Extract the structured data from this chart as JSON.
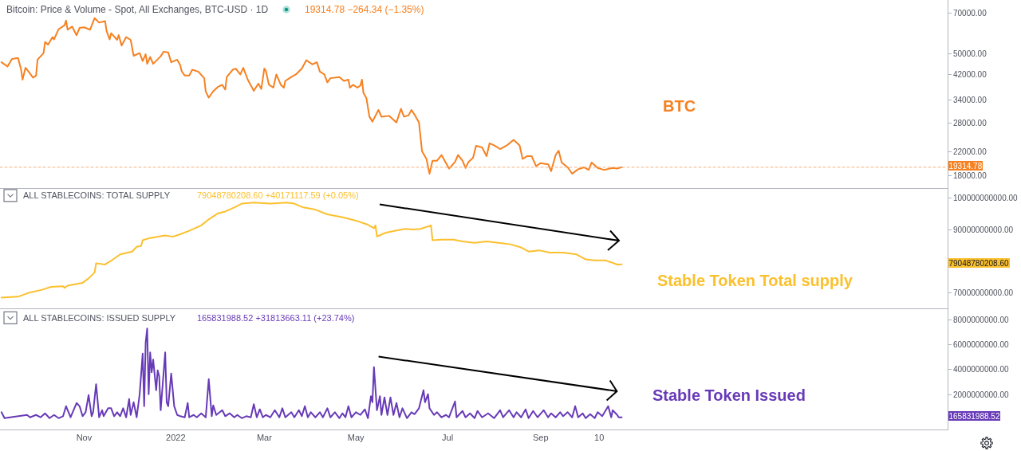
{
  "chart_data": [
    {
      "type": "line",
      "title": "Bitcoin: Price & Volume - Spot, All Exchanges, BTC-USD · 1D",
      "subtitle": "19314.78 −264.34 (−1.35%)",
      "series": [
        {
          "name": "BTC",
          "color": "#f68121",
          "x": [
            "2021-09-07",
            "2021-09-11",
            "2021-09-14",
            "2021-09-18",
            "2021-09-20",
            "2021-09-21",
            "2021-09-23",
            "2021-09-25",
            "2021-09-28",
            "2021-09-30",
            "2021-10-01",
            "2021-10-05",
            "2021-10-06",
            "2021-10-08",
            "2021-10-11",
            "2021-10-12",
            "2021-10-15",
            "2021-10-19",
            "2021-10-20",
            "2021-10-21",
            "2021-10-24",
            "2021-10-27",
            "2021-10-29",
            "2021-11-01",
            "2021-11-05",
            "2021-11-08",
            "2021-11-11",
            "2021-11-15",
            "2021-11-16",
            "2021-11-18",
            "2021-11-19",
            "2021-11-23",
            "2021-11-24",
            "2021-11-26",
            "2021-11-29",
            "2021-12-02",
            "2021-12-04",
            "2021-12-08",
            "2021-12-10",
            "2021-12-12",
            "2021-12-13",
            "2021-12-15",
            "2021-12-17",
            "2021-12-22",
            "2021-12-24",
            "2021-12-27",
            "2021-12-29",
            "2022-01-02",
            "2022-01-04",
            "2022-01-05",
            "2022-01-07",
            "2022-01-10",
            "2022-01-12",
            "2022-01-16",
            "2022-01-20",
            "2022-01-21",
            "2022-01-23",
            "2022-01-26",
            "2022-01-29",
            "2022-02-01",
            "2022-02-03",
            "2022-02-04",
            "2022-02-08",
            "2022-02-10",
            "2022-02-13",
            "2022-02-15",
            "2022-02-18",
            "2022-02-22",
            "2022-02-25",
            "2022-02-27",
            "2022-03-01",
            "2022-03-02",
            "2022-03-04",
            "2022-03-07",
            "2022-03-09",
            "2022-03-12",
            "2022-03-14",
            "2022-03-15",
            "2022-03-19",
            "2022-03-22",
            "2022-03-26",
            "2022-03-29",
            "2022-04-02",
            "2022-04-05",
            "2022-04-07",
            "2022-04-10",
            "2022-04-12",
            "2022-04-14",
            "2022-04-20",
            "2022-04-23",
            "2022-04-26",
            "2022-04-27",
            "2022-04-29",
            "2022-05-02",
            "2022-05-04",
            "2022-05-05",
            "2022-05-06",
            "2022-05-08",
            "2022-05-10",
            "2022-05-12",
            "2022-05-16",
            "2022-05-18",
            "2022-05-23",
            "2022-05-28",
            "2022-05-31",
            "2022-06-02",
            "2022-06-05",
            "2022-06-07",
            "2022-06-09",
            "2022-06-12",
            "2022-06-14",
            "2022-06-17",
            "2022-06-19",
            "2022-06-21",
            "2022-06-24",
            "2022-06-27",
            "2022-07-02",
            "2022-07-06",
            "2022-07-08",
            "2022-07-11",
            "2022-07-13",
            "2022-07-15",
            "2022-07-18",
            "2022-07-20",
            "2022-07-24",
            "2022-07-27",
            "2022-07-29",
            "2022-08-01",
            "2022-08-05",
            "2022-08-10",
            "2022-08-14",
            "2022-08-18",
            "2022-08-20",
            "2022-08-23",
            "2022-08-26",
            "2022-08-29",
            "2022-09-01",
            "2022-09-06",
            "2022-09-08",
            "2022-09-11",
            "2022-09-13",
            "2022-09-15",
            "2022-09-19",
            "2022-09-22",
            "2022-09-26",
            "2022-09-30",
            "2022-10-03",
            "2022-10-05",
            "2022-10-09",
            "2022-10-13",
            "2022-10-19",
            "2022-10-22",
            "2022-10-25"
          ],
          "values": [
            46500,
            44900,
            47800,
            48200,
            43900,
            40200,
            44400,
            43000,
            40900,
            41600,
            47500,
            50200,
            55100,
            53900,
            57400,
            56300,
            61300,
            63400,
            65900,
            61100,
            62700,
            58300,
            62000,
            62300,
            61100,
            67300,
            64800,
            65600,
            60300,
            56300,
            59300,
            56100,
            58400,
            53500,
            57400,
            56100,
            49100,
            50200,
            47000,
            49700,
            45900,
            48600,
            45900,
            48900,
            50800,
            50500,
            46500,
            47500,
            45400,
            43100,
            41600,
            41600,
            43700,
            43000,
            40700,
            36400,
            34600,
            36500,
            37800,
            38500,
            37000,
            41100,
            43700,
            44100,
            42000,
            44400,
            40200,
            36600,
            38900,
            37200,
            44100,
            43400,
            38600,
            37600,
            42000,
            38500,
            37600,
            39800,
            41100,
            42000,
            44100,
            47300,
            45700,
            46500,
            43000,
            42000,
            39300,
            40700,
            41100,
            39800,
            40200,
            37600,
            38500,
            37600,
            38300,
            40200,
            36000,
            34400,
            29500,
            28300,
            31200,
            29500,
            29700,
            28100,
            31500,
            29500,
            29800,
            31200,
            30000,
            28100,
            22100,
            20700,
            18300,
            20400,
            20400,
            21400,
            19100,
            20200,
            21400,
            20400,
            19200,
            20200,
            20900,
            23100,
            22800,
            21200,
            23600,
            23200,
            22500,
            23300,
            24300,
            23200,
            20700,
            21200,
            21200,
            19500,
            20000,
            19800,
            18700,
            21400,
            22200,
            20100,
            19300,
            18300,
            19000,
            19300,
            18900,
            20100,
            19200,
            18900,
            19200,
            19100,
            19314.78
          ]
        }
      ],
      "xlim": [
        "2021-09-06",
        "2023-05-30"
      ],
      "ylim": [
        16200,
        78300
      ],
      "log": true,
      "tick_labels": "y",
      "yticks": [
        {
          "value": 70000,
          "label": "70000.00"
        },
        {
          "value": 50000,
          "label": "50000.00"
        },
        {
          "value": 42000,
          "label": "42000.00"
        },
        {
          "value": 34000,
          "label": "34000.00"
        },
        {
          "value": 28000,
          "label": "28000.00"
        },
        {
          "value": 22000,
          "label": "22000.00"
        },
        {
          "value": 18000,
          "label": "18000.00"
        }
      ],
      "ref_lines": [
        {
          "axis": "y",
          "value": 19314.78,
          "label": "19314.78",
          "color": "#f9b07a",
          "line_style": "dotted"
        }
      ]
    },
    {
      "type": "line",
      "title": "ALL STABLECOINS: TOTAL SUPPLY",
      "subtitle": "79048780208.60 +40171117.59 (+0.05%)",
      "series": [
        {
          "name": "Stable Token Total supply",
          "color": "#fbc02d",
          "x": [
            "2021-09-07",
            "2021-09-18",
            "2021-09-25",
            "2021-10-04",
            "2021-10-10",
            "2021-10-18",
            "2021-10-19",
            "2021-10-21",
            "2021-10-31",
            "2021-11-04",
            "2021-11-08",
            "2021-11-09",
            "2021-11-15",
            "2021-11-19",
            "2021-11-25",
            "2021-12-03",
            "2021-12-06",
            "2021-12-09",
            "2021-12-10",
            "2021-12-14",
            "2021-12-25",
            "2021-12-30",
            "2022-01-04",
            "2022-01-10",
            "2022-01-18",
            "2022-01-23",
            "2022-01-29",
            "2022-02-03",
            "2022-02-09",
            "2022-02-14",
            "2022-02-22",
            "2022-03-05",
            "2022-03-16",
            "2022-03-21",
            "2022-03-27",
            "2022-04-04",
            "2022-04-12",
            "2022-04-23",
            "2022-05-01",
            "2022-05-09",
            "2022-05-13",
            "2022-05-14",
            "2022-05-15",
            "2022-05-21",
            "2022-05-28",
            "2022-06-03",
            "2022-06-08",
            "2022-06-13",
            "2022-06-20",
            "2022-06-21",
            "2022-06-27",
            "2022-07-05",
            "2022-07-11",
            "2022-07-19",
            "2022-07-27",
            "2022-08-04",
            "2022-08-12",
            "2022-08-19",
            "2022-08-24",
            "2022-08-31",
            "2022-09-07",
            "2022-09-16",
            "2022-09-25",
            "2022-10-01",
            "2022-10-07",
            "2022-10-14",
            "2022-10-18",
            "2022-10-22",
            "2022-10-25"
          ],
          "values": [
            68500000000.0,
            68800000000.0,
            70000000000.0,
            71000000000.0,
            71900000000.0,
            72100000000.0,
            71600000000.0,
            72300000000.0,
            73200000000.0,
            74600000000.0,
            76500000000.0,
            79400000000.0,
            79000000000.0,
            80200000000.0,
            82200000000.0,
            83100000000.0,
            84600000000.0,
            84900000000.0,
            86700000000.0,
            87300000000.0,
            88200000000.0,
            87800000000.0,
            88600000000.0,
            89700000000.0,
            91400000000.0,
            93300000000.0,
            95200000000.0,
            95800000000.0,
            97100000000.0,
            98300000000.0,
            98600000000.0,
            98300000000.0,
            98600000000.0,
            98300000000.0,
            97100000000.0,
            96400000000.0,
            94900000000.0,
            93900000000.0,
            92900000000.0,
            91600000000.0,
            90500000000.0,
            91400000000.0,
            87900000000.0,
            89100000000.0,
            89800000000.0,
            90300000000.0,
            90100000000.0,
            90300000000.0,
            91400000000.0,
            86700000000.0,
            86900000000.0,
            86900000000.0,
            86300000000.0,
            85900000000.0,
            86300000000.0,
            85900000000.0,
            85400000000.0,
            84400000000.0,
            83100000000.0,
            83500000000.0,
            82800000000.0,
            82800000000.0,
            82200000000.0,
            80600000000.0,
            80300000000.0,
            80300000000.0,
            79700000000.0,
            79000000000.0,
            79048780208.6
          ]
        }
      ],
      "xlim": [
        "2021-09-06",
        "2023-05-30"
      ],
      "ylim": [
        65200000000,
        103170000000
      ],
      "tick_labels": "y",
      "yticks": [
        {
          "value": 100000000000,
          "label": "100000000000.00"
        },
        {
          "value": 90000000000,
          "label": "90000000000.00"
        },
        {
          "value": 70000000000,
          "label": "70000000000.00"
        }
      ],
      "annotations": [
        "79048780208.60"
      ]
    },
    {
      "type": "line",
      "title": "ALL STABLECOINS: ISSUED SUPPLY",
      "subtitle": "165831988.52 +31813663.11 (+23.74%)",
      "series": [
        {
          "name": "Stable Token Issued",
          "color": "#673ab7",
          "x": [
            "2021-09-07",
            "2021-09-09",
            "2021-09-24",
            "2021-09-26",
            "2021-09-30",
            "2021-10-03",
            "2021-10-06",
            "2021-10-09",
            "2021-10-12",
            "2021-10-15",
            "2021-10-18",
            "2021-10-20",
            "2021-10-23",
            "2021-10-27",
            "2021-10-29",
            "2021-10-31",
            "2021-11-02",
            "2021-11-04",
            "2021-11-06",
            "2021-11-07",
            "2021-11-09",
            "2021-11-11",
            "2021-11-13",
            "2021-11-14",
            "2021-11-17",
            "2021-11-19",
            "2021-11-21",
            "2021-11-23",
            "2021-11-25",
            "2021-11-27",
            "2021-11-29",
            "2021-12-01",
            "2021-12-02",
            "2021-12-04",
            "2021-12-06",
            "2021-12-08",
            "2021-12-10",
            "2021-12-11",
            "2021-12-12",
            "2021-12-13",
            "2021-12-14",
            "2021-12-15",
            "2021-12-16",
            "2021-12-17",
            "2021-12-19",
            "2021-12-20",
            "2021-12-21",
            "2021-12-22",
            "2021-12-25",
            "2021-12-26",
            "2021-12-27",
            "2021-12-29",
            "2021-12-31",
            "2022-01-02",
            "2022-01-04",
            "2022-01-07",
            "2022-01-09",
            "2022-01-10",
            "2022-01-13",
            "2022-01-15",
            "2022-01-18",
            "2022-01-21",
            "2022-01-23",
            "2022-01-25",
            "2022-01-26",
            "2022-01-28",
            "2022-02-01",
            "2022-02-03",
            "2022-02-06",
            "2022-02-09",
            "2022-02-11",
            "2022-02-14",
            "2022-02-17",
            "2022-02-20",
            "2022-02-22",
            "2022-02-24",
            "2022-02-26",
            "2022-02-28",
            "2022-03-02",
            "2022-03-05",
            "2022-03-08",
            "2022-03-11",
            "2022-03-13",
            "2022-03-15",
            "2022-03-19",
            "2022-03-21",
            "2022-03-24",
            "2022-03-26",
            "2022-03-28",
            "2022-03-30",
            "2022-04-01",
            "2022-04-04",
            "2022-04-07",
            "2022-04-09",
            "2022-04-12",
            "2022-04-14",
            "2022-04-17",
            "2022-04-20",
            "2022-04-22",
            "2022-04-24",
            "2022-04-26",
            "2022-04-28",
            "2022-05-01",
            "2022-05-04",
            "2022-05-07",
            "2022-05-09",
            "2022-05-11",
            "2022-05-12",
            "2022-05-13",
            "2022-05-15",
            "2022-05-17",
            "2022-05-18",
            "2022-05-20",
            "2022-05-22",
            "2022-05-24",
            "2022-05-26",
            "2022-05-28",
            "2022-05-30",
            "2022-06-01",
            "2022-06-04",
            "2022-06-07",
            "2022-06-09",
            "2022-06-12",
            "2022-06-15",
            "2022-06-16",
            "2022-06-18",
            "2022-06-19",
            "2022-06-22",
            "2022-06-24",
            "2022-06-27",
            "2022-06-30",
            "2022-07-02",
            "2022-07-06",
            "2022-07-07",
            "2022-07-11",
            "2022-07-13",
            "2022-07-16",
            "2022-07-19",
            "2022-07-21",
            "2022-07-24",
            "2022-07-28",
            "2022-08-01",
            "2022-08-05",
            "2022-08-07",
            "2022-08-11",
            "2022-08-14",
            "2022-08-16",
            "2022-08-19",
            "2022-08-22",
            "2022-08-24",
            "2022-08-27",
            "2022-08-30",
            "2022-09-03",
            "2022-09-06",
            "2022-09-08",
            "2022-09-11",
            "2022-09-14",
            "2022-09-16",
            "2022-09-19",
            "2022-09-22",
            "2022-09-24",
            "2022-09-26",
            "2022-09-29",
            "2022-10-01",
            "2022-10-04",
            "2022-10-07",
            "2022-10-09",
            "2022-10-12",
            "2022-10-16",
            "2022-10-18",
            "2022-10-19",
            "2022-10-22",
            "2022-10-23",
            "2022-10-25"
          ],
          "values": [
            580000000.0,
            100000000.0,
            360000000.0,
            170000000.0,
            360000000.0,
            170000000.0,
            490000000.0,
            100000000.0,
            360000000.0,
            100000000.0,
            260000000.0,
            1060000000.0,
            170000000.0,
            1320000000.0,
            1060000000.0,
            260000000.0,
            580000000.0,
            1960000000.0,
            260000000.0,
            580000000.0,
            2830000000.0,
            170000000.0,
            740000000.0,
            260000000.0,
            900000000.0,
            900000000.0,
            260000000.0,
            580000000.0,
            260000000.0,
            900000000.0,
            170000000.0,
            1640000000.0,
            360000000.0,
            1380000000.0,
            170000000.0,
            2030000000.0,
            5290000000.0,
            1060000000.0,
            6190000000.0,
            7310000000.0,
            2030000000.0,
            5390000000.0,
            3790000000.0,
            4810000000.0,
            2350000000.0,
            3950000000.0,
            3470000000.0,
            740000000.0,
            5390000000.0,
            1380000000.0,
            1060000000.0,
            3690000000.0,
            1060000000.0,
            360000000.0,
            260000000.0,
            170000000.0,
            1320000000.0,
            170000000.0,
            360000000.0,
            170000000.0,
            490000000.0,
            170000000.0,
            3240000000.0,
            260000000.0,
            1130000000.0,
            360000000.0,
            740000000.0,
            260000000.0,
            490000000.0,
            170000000.0,
            360000000.0,
            100000000.0,
            260000000.0,
            170000000.0,
            1220000000.0,
            170000000.0,
            810000000.0,
            170000000.0,
            360000000.0,
            170000000.0,
            740000000.0,
            170000000.0,
            900000000.0,
            170000000.0,
            580000000.0,
            170000000.0,
            740000000.0,
            260000000.0,
            1060000000.0,
            170000000.0,
            580000000.0,
            170000000.0,
            580000000.0,
            170000000.0,
            900000000.0,
            170000000.0,
            580000000.0,
            100000000.0,
            490000000.0,
            170000000.0,
            1060000000.0,
            170000000.0,
            580000000.0,
            360000000.0,
            810000000.0,
            100000000.0,
            1870000000.0,
            1380000000.0,
            4210000000.0,
            740000000.0,
            1870000000.0,
            360000000.0,
            1770000000.0,
            360000000.0,
            1770000000.0,
            360000000.0,
            1320000000.0,
            170000000.0,
            900000000.0,
            100000000.0,
            580000000.0,
            420000000.0,
            900000000.0,
            2350000000.0,
            1380000000.0,
            2030000000.0,
            900000000.0,
            360000000.0,
            580000000.0,
            170000000.0,
            360000000.0,
            170000000.0,
            1450000000.0,
            170000000.0,
            680000000.0,
            170000000.0,
            490000000.0,
            100000000.0,
            680000000.0,
            170000000.0,
            490000000.0,
            100000000.0,
            740000000.0,
            170000000.0,
            740000000.0,
            170000000.0,
            580000000.0,
            170000000.0,
            810000000.0,
            100000000.0,
            680000000.0,
            170000000.0,
            740000000.0,
            170000000.0,
            490000000.0,
            170000000.0,
            580000000.0,
            260000000.0,
            580000000.0,
            170000000.0,
            1060000000.0,
            170000000.0,
            490000000.0,
            100000000.0,
            420000000.0,
            100000000.0,
            580000000.0,
            260000000.0,
            1060000000.0,
            170000000.0,
            740000000.0,
            360000000.0,
            170000000.0,
            165831988.52
          ]
        }
      ],
      "xlim": [
        "2021-09-06",
        "2023-05-30"
      ],
      "xticks": [
        {
          "value": "2021-11-01",
          "label": "Nov"
        },
        {
          "value": "2022-01-01",
          "label": "2022"
        },
        {
          "value": "2022-03-01",
          "label": "Mar"
        },
        {
          "value": "2022-05-01",
          "label": "May"
        },
        {
          "value": "2022-07-01",
          "label": "Jul"
        },
        {
          "value": "2022-09-01",
          "label": "Sep"
        },
        {
          "value": "2022-10-10",
          "label": "10"
        }
      ],
      "ylim": [
        -810000000,
        8960000000
      ],
      "yticks": [
        {
          "value": 8000000000,
          "label": "8000000000.00"
        },
        {
          "value": 6000000000,
          "label": "6000000000.00"
        },
        {
          "value": 4000000000,
          "label": "4000000000.00"
        },
        {
          "value": 2000000000,
          "label": "2000000000.00"
        }
      ],
      "annotations": [
        "165831988.52"
      ]
    }
  ]
}
